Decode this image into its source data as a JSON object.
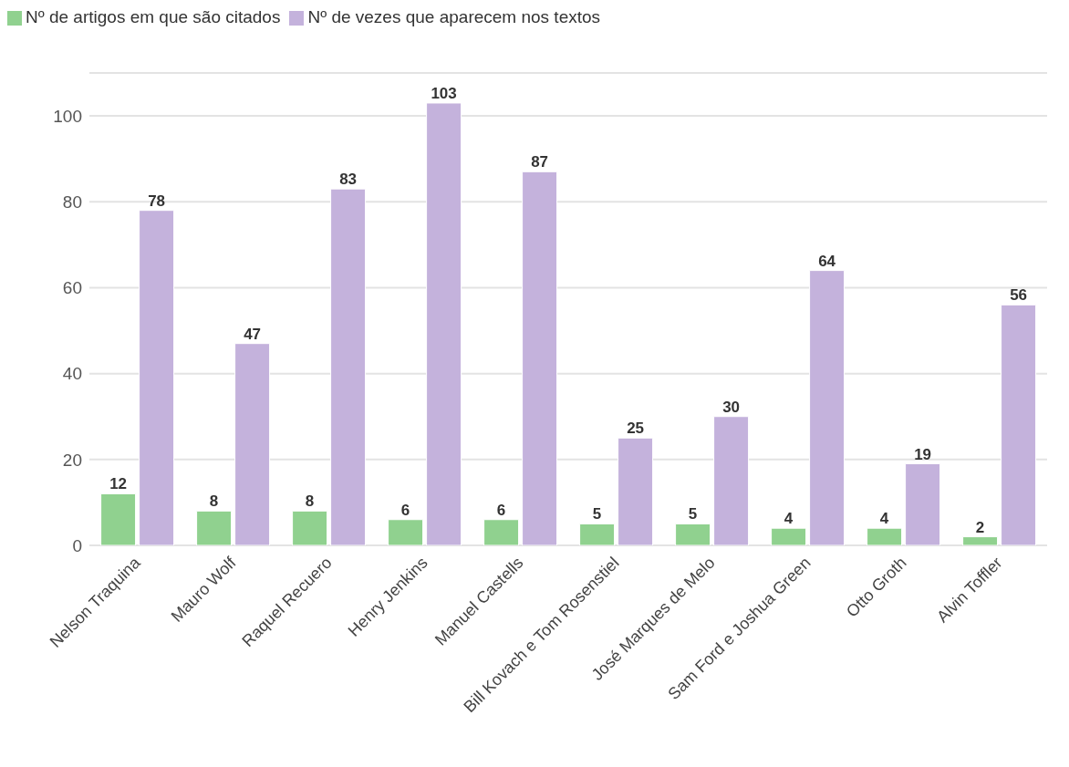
{
  "chart_data": {
    "type": "bar",
    "categories": [
      "Nelson Traquina",
      "Mauro Wolf",
      "Raquel Recuero",
      "Henry Jenkins",
      "Manuel Castells",
      "Bill Kovach e Tom Rosenstiel",
      "José Marques de Melo",
      "Sam Ford e Joshua Green",
      "Otto Groth",
      "Alvin Toffler"
    ],
    "series": [
      {
        "name": "Nº de artigos em que são citados",
        "color": "#90d18f",
        "values": [
          12,
          8,
          8,
          6,
          6,
          5,
          5,
          4,
          4,
          2
        ]
      },
      {
        "name": "Nº de vezes que aparecem nos textos",
        "color": "#c4b2dc",
        "values": [
          78,
          47,
          83,
          103,
          87,
          25,
          30,
          64,
          19,
          56
        ]
      }
    ],
    "ylim": [
      0,
      110
    ],
    "yticks": [
      0,
      20,
      40,
      60,
      80,
      100
    ],
    "grid": "y",
    "legend": "top left",
    "data_labels": true
  }
}
